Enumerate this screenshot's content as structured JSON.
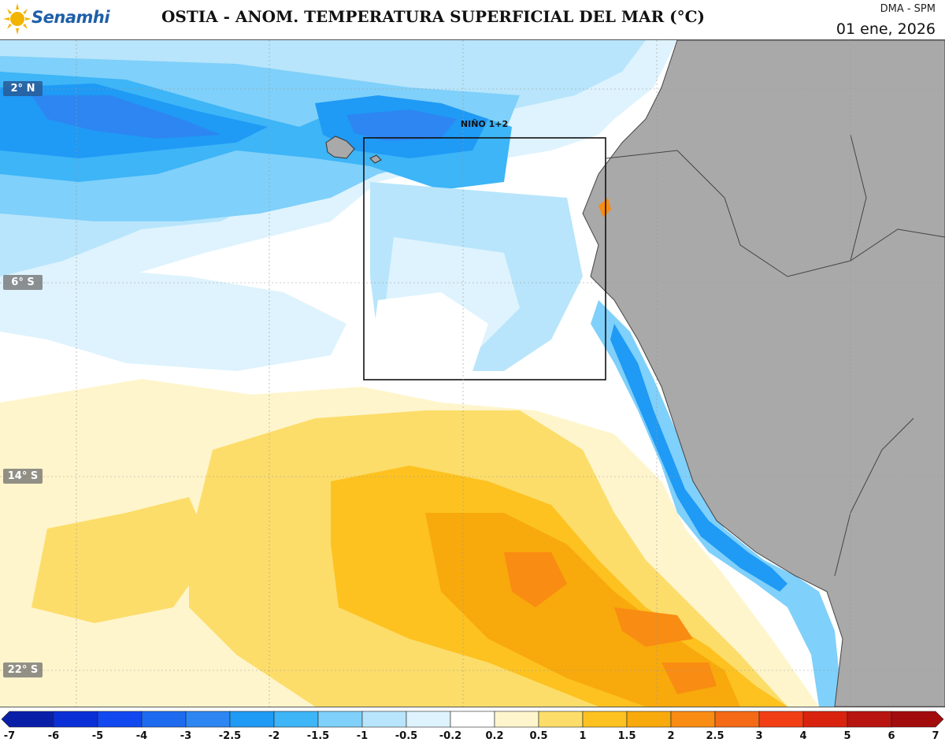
{
  "header": {
    "logo_text": "Senamhi",
    "title": "OSTIA - ANOM. TEMPERATURA SUPERFICIAL DEL MAR (°C)",
    "org": "DMA - SPM",
    "date": "01 ene, 2026"
  },
  "map": {
    "region_label": "NIÑO 1+2",
    "lat_labels": [
      "2° N",
      "6° S",
      "14° S",
      "22° S"
    ],
    "land_color": "#a9a9a9",
    "ocean_base_color": "#ffffff"
  },
  "colorbar": {
    "ticks": [
      "-7",
      "-6",
      "-5",
      "-4",
      "-3",
      "-2.5",
      "-2",
      "-1.5",
      "-1",
      "-0.5",
      "-0.2",
      "0.2",
      "0.5",
      "1",
      "1.5",
      "2",
      "2.5",
      "3",
      "4",
      "5",
      "6",
      "7"
    ],
    "colors": [
      "#0a1fa8",
      "#0b2fd6",
      "#1248f0",
      "#1f6bf0",
      "#2d86f2",
      "#1f9af5",
      "#3db5f7",
      "#7fd0fa",
      "#b8e5fb",
      "#def3fd",
      "#ffffff",
      "#fff5cc",
      "#fcdd6a",
      "#fdc220",
      "#f8a90c",
      "#f98c12",
      "#f46a16",
      "#f23e14",
      "#d9230f",
      "#b81410",
      "#a20c0c"
    ]
  }
}
